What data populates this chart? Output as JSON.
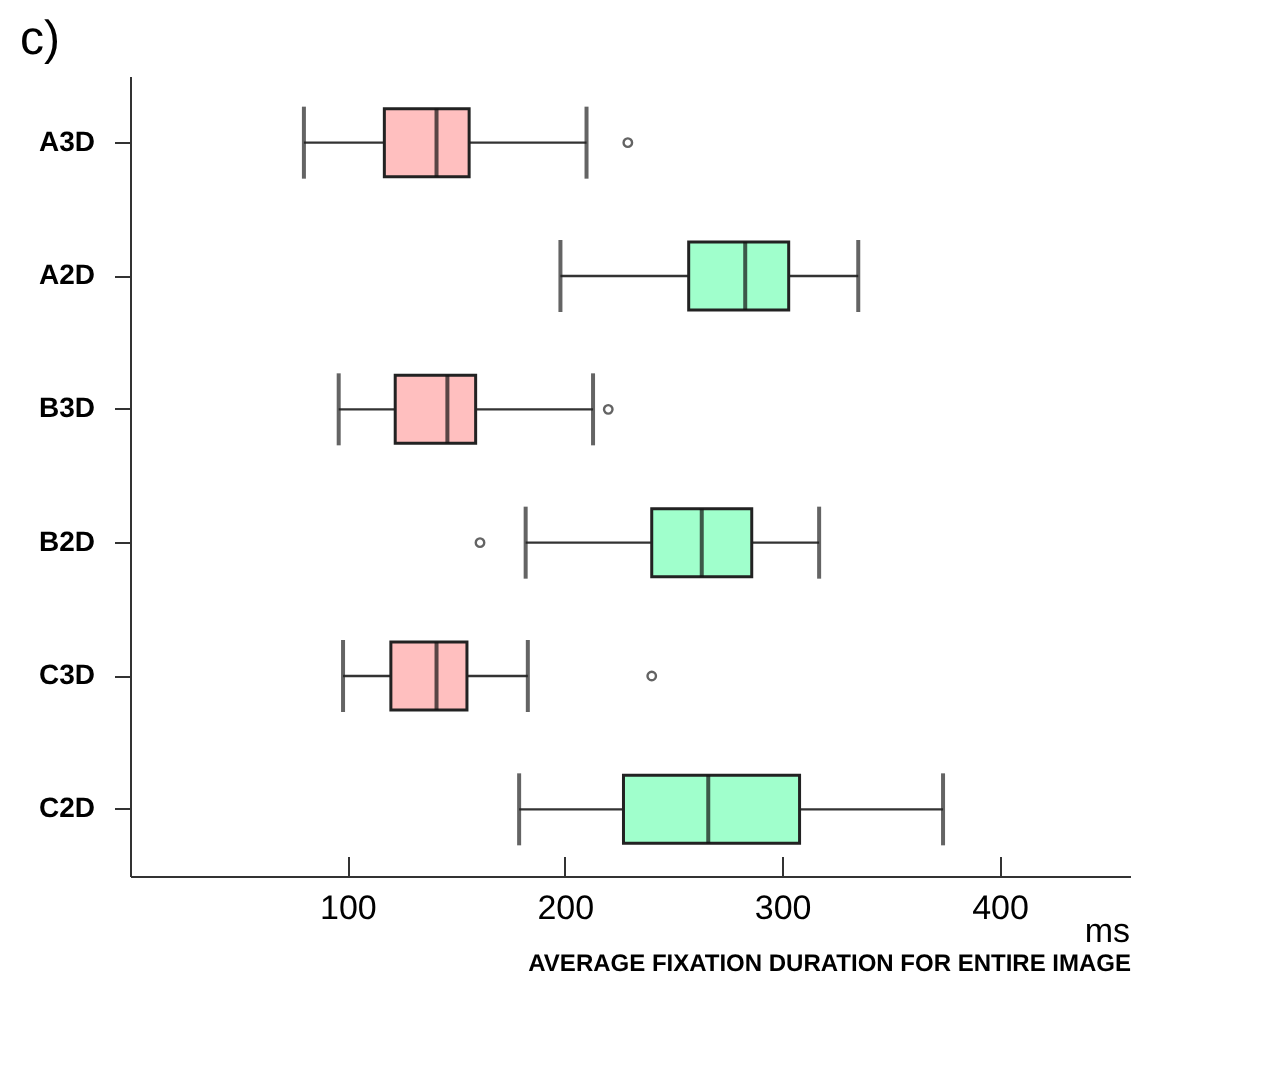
{
  "chart_data": {
    "type": "box",
    "orientation": "horizontal",
    "title": "c)",
    "xlabel": "AVERAGE FIXATION DURATION FOR ENTIRE IMAGE",
    "annotations": [
      "ms"
    ],
    "categories": [
      "A3D",
      "A2D",
      "B3D",
      "B2D",
      "C3D",
      "C2D"
    ],
    "colors": [
      "#ffbfbf",
      "#a0ffcc",
      "#ffbfbf",
      "#a0ffcc",
      "#ffbfbf",
      "#a0ffcc"
    ],
    "boxes": [
      {
        "low": 80,
        "q1": 117,
        "median": 141,
        "q3": 156,
        "high": 210,
        "outliers": [
          229
        ]
      },
      {
        "low": 198,
        "q1": 257,
        "median": 283,
        "q3": 303,
        "high": 335
      },
      {
        "low": 96,
        "q1": 122,
        "median": 146,
        "q3": 159,
        "high": 213,
        "outliers": [
          220
        ]
      },
      {
        "low": 182,
        "q1": 240,
        "median": 263,
        "q3": 286,
        "high": 317,
        "outliers": [
          161
        ]
      },
      {
        "low": 98,
        "q1": 120,
        "median": 141,
        "q3": 155,
        "high": 183,
        "outliers": [
          240
        ]
      },
      {
        "low": 179,
        "q1": 227,
        "median": 266,
        "q3": 308,
        "high": 374
      }
    ],
    "xlim": [
      0,
      460
    ],
    "xticks": [
      100,
      200,
      300,
      400
    ]
  }
}
